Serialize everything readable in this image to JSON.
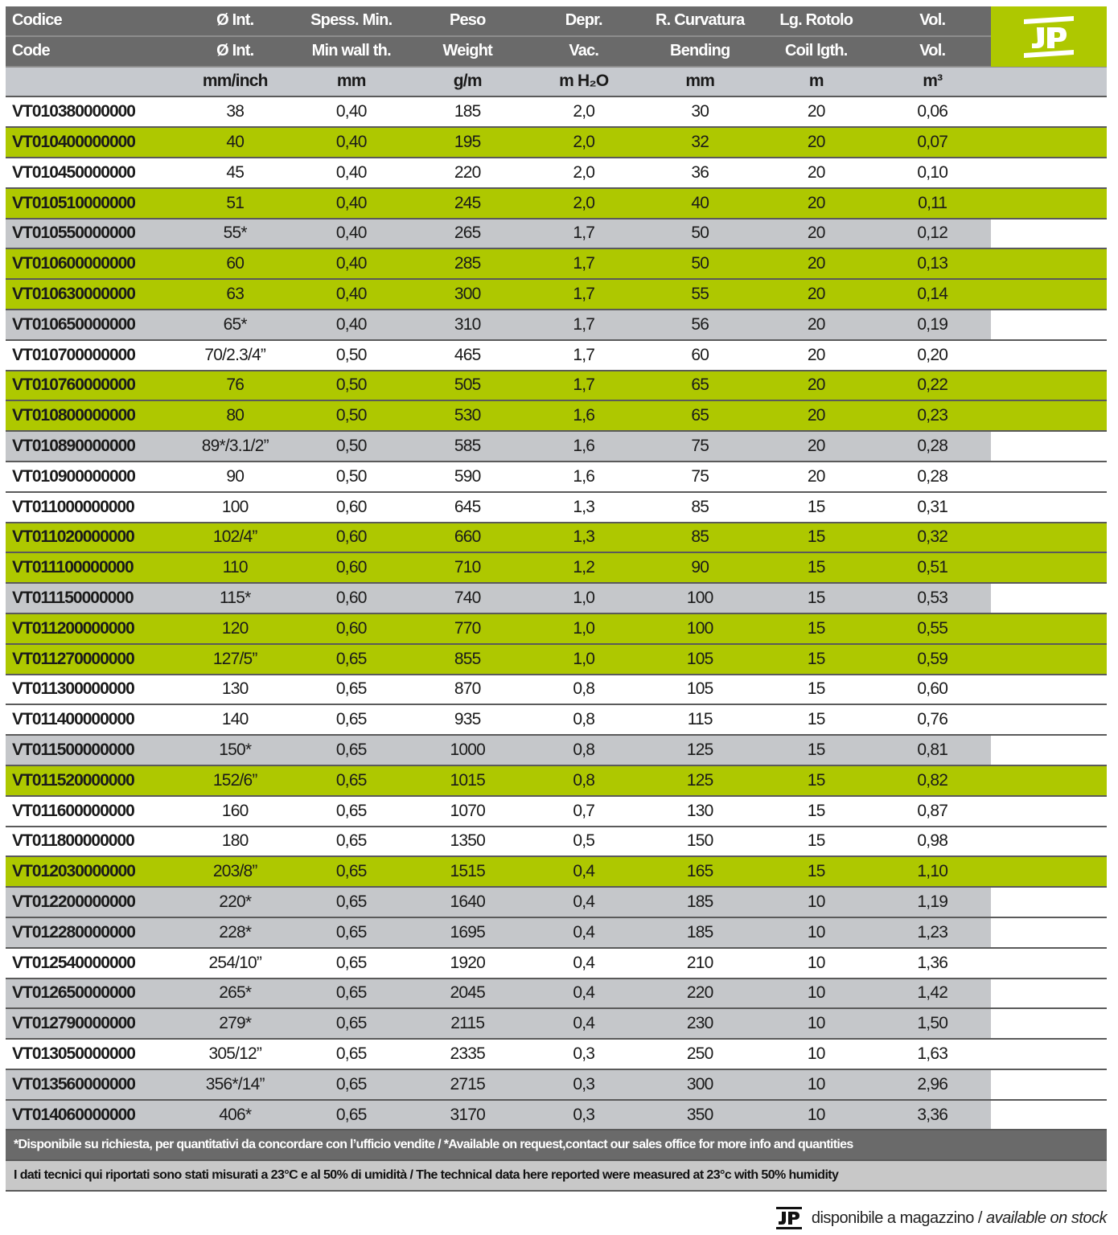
{
  "header_row1": [
    "Codice",
    "Ø Int.",
    "Spess. Min.",
    "Peso",
    "Depr.",
    "R. Curvatura",
    "Lg. Rotolo",
    "Vol."
  ],
  "header_row2": [
    "Code",
    "Ø Int.",
    "Min wall th.",
    "Weight",
    "Vac.",
    "Bending",
    "Coil lgth.",
    "Vol."
  ],
  "units": [
    "",
    "mm/inch",
    "mm",
    "g/m",
    "m H₂O",
    "mm",
    "m",
    "m³"
  ],
  "logo": "JP",
  "colors": {
    "header": "#6a6a6a",
    "units_row": "#c6c9ce",
    "green_row": "#aec800",
    "gray_row": "#c5c7ca"
  },
  "row_legend": {
    "g": "available on stock (JP)",
    "s": "available on request (*)",
    "w": "standard"
  },
  "rows": [
    [
      "VT010380000000",
      "38",
      "0,40",
      "185",
      "2,0",
      "30",
      "20",
      "0,06",
      "w"
    ],
    [
      "VT010400000000",
      "40",
      "0,40",
      "195",
      "2,0",
      "32",
      "20",
      "0,07",
      "g"
    ],
    [
      "VT010450000000",
      "45",
      "0,40",
      "220",
      "2,0",
      "36",
      "20",
      "0,10",
      "w"
    ],
    [
      "VT010510000000",
      "51",
      "0,40",
      "245",
      "2,0",
      "40",
      "20",
      "0,11",
      "g"
    ],
    [
      "VT010550000000",
      "55*",
      "0,40",
      "265",
      "1,7",
      "50",
      "20",
      "0,12",
      "s"
    ],
    [
      "VT010600000000",
      "60",
      "0,40",
      "285",
      "1,7",
      "50",
      "20",
      "0,13",
      "g"
    ],
    [
      "VT010630000000",
      "63",
      "0,40",
      "300",
      "1,7",
      "55",
      "20",
      "0,14",
      "g"
    ],
    [
      "VT010650000000",
      "65*",
      "0,40",
      "310",
      "1,7",
      "56",
      "20",
      "0,19",
      "s"
    ],
    [
      "VT010700000000",
      "70/2.3/4”",
      "0,50",
      "465",
      "1,7",
      "60",
      "20",
      "0,20",
      "w"
    ],
    [
      "VT010760000000",
      "76",
      "0,50",
      "505",
      "1,7",
      "65",
      "20",
      "0,22",
      "g"
    ],
    [
      "VT010800000000",
      "80",
      "0,50",
      "530",
      "1,6",
      "65",
      "20",
      "0,23",
      "g"
    ],
    [
      "VT010890000000",
      "89*/3.1/2”",
      "0,50",
      "585",
      "1,6",
      "75",
      "20",
      "0,28",
      "s"
    ],
    [
      "VT010900000000",
      "90",
      "0,50",
      "590",
      "1,6",
      "75",
      "20",
      "0,28",
      "w"
    ],
    [
      "VT011000000000",
      "100",
      "0,60",
      "645",
      "1,3",
      "85",
      "15",
      "0,31",
      "w"
    ],
    [
      "VT011020000000",
      "102/4”",
      "0,60",
      "660",
      "1,3",
      "85",
      "15",
      "0,32",
      "g"
    ],
    [
      "VT011100000000",
      "110",
      "0,60",
      "710",
      "1,2",
      "90",
      "15",
      "0,51",
      "g"
    ],
    [
      "VT011150000000",
      "115*",
      "0,60",
      "740",
      "1,0",
      "100",
      "15",
      "0,53",
      "s"
    ],
    [
      "VT011200000000",
      "120",
      "0,60",
      "770",
      "1,0",
      "100",
      "15",
      "0,55",
      "g"
    ],
    [
      "VT011270000000",
      "127/5”",
      "0,65",
      "855",
      "1,0",
      "105",
      "15",
      "0,59",
      "g"
    ],
    [
      "VT011300000000",
      "130",
      "0,65",
      "870",
      "0,8",
      "105",
      "15",
      "0,60",
      "w"
    ],
    [
      "VT011400000000",
      "140",
      "0,65",
      "935",
      "0,8",
      "115",
      "15",
      "0,76",
      "w"
    ],
    [
      "VT011500000000",
      "150*",
      "0,65",
      "1000",
      "0,8",
      "125",
      "15",
      "0,81",
      "s"
    ],
    [
      "VT011520000000",
      "152/6”",
      "0,65",
      "1015",
      "0,8",
      "125",
      "15",
      "0,82",
      "g"
    ],
    [
      "VT011600000000",
      "160",
      "0,65",
      "1070",
      "0,7",
      "130",
      "15",
      "0,87",
      "w"
    ],
    [
      "VT011800000000",
      "180",
      "0,65",
      "1350",
      "0,5",
      "150",
      "15",
      "0,98",
      "w"
    ],
    [
      "VT012030000000",
      "203/8”",
      "0,65",
      "1515",
      "0,4",
      "165",
      "15",
      "1,10",
      "g"
    ],
    [
      "VT012200000000",
      "220*",
      "0,65",
      "1640",
      "0,4",
      "185",
      "10",
      "1,19",
      "s"
    ],
    [
      "VT012280000000",
      "228*",
      "0,65",
      "1695",
      "0,4",
      "185",
      "10",
      "1,23",
      "s"
    ],
    [
      "VT012540000000",
      "254/10”",
      "0,65",
      "1920",
      "0,4",
      "210",
      "10",
      "1,36",
      "w"
    ],
    [
      "VT012650000000",
      "265*",
      "0,65",
      "2045",
      "0,4",
      "220",
      "10",
      "1,42",
      "s"
    ],
    [
      "VT012790000000",
      "279*",
      "0,65",
      "2115",
      "0,4",
      "230",
      "10",
      "1,50",
      "s"
    ],
    [
      "VT013050000000",
      "305/12”",
      "0,65",
      "2335",
      "0,3",
      "250",
      "10",
      "1,63",
      "w"
    ],
    [
      "VT013560000000",
      "356*/14”",
      "0,65",
      "2715",
      "0,3",
      "300",
      "10",
      "2,96",
      "s"
    ],
    [
      "VT014060000000",
      "406*",
      "0,65",
      "3170",
      "0,3",
      "350",
      "10",
      "3,36",
      "s"
    ]
  ],
  "footnote1": "*Disponibile su richiesta, per quantitativi da concordare con l’ufficio vendite / *Available on request,contact our sales office for more info and quantities",
  "footnote2": "I dati tecnici qui riportati sono stati misurati a 23°C e al 50% di umidità / The technical data here reported were measured at 23°c with 50% humidity",
  "stock_note": {
    "it": "disponibile a magazzino /",
    "en": "available on stock"
  }
}
